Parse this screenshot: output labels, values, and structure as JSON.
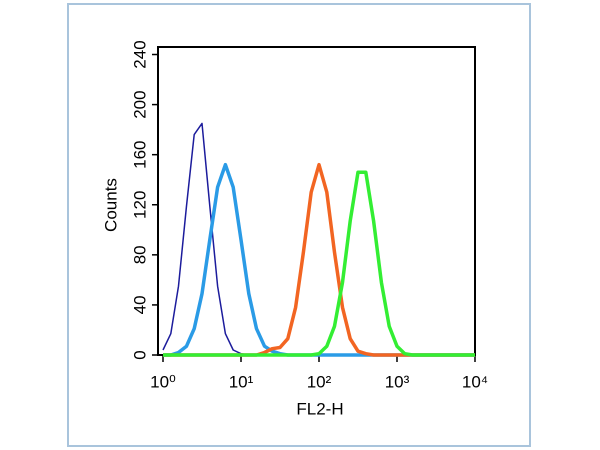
{
  "chart_data": {
    "type": "line",
    "x_label": "FL2-H",
    "y_label": "Counts",
    "xscale": "log",
    "xlim": [
      1,
      10000
    ],
    "xticks": [
      {
        "value": 1,
        "label": "10⁰"
      },
      {
        "value": 10,
        "label": "10¹"
      },
      {
        "value": 100,
        "label": "10²"
      },
      {
        "value": 1000,
        "label": "10³"
      },
      {
        "value": 10000,
        "label": "10⁴"
      }
    ],
    "ylim": [
      0,
      246
    ],
    "yticks": [
      0,
      40,
      80,
      120,
      160,
      200,
      240
    ],
    "x": [
      1,
      1.26,
      1.58,
      2,
      2.51,
      3.16,
      3.98,
      5.01,
      6.31,
      7.94,
      10,
      12.6,
      15.8,
      20,
      25.1,
      31.6,
      39.8,
      50.1,
      63.1,
      79.4,
      100,
      126,
      158,
      200,
      251,
      316,
      398,
      501,
      631,
      794,
      1000,
      1259,
      1585,
      1995,
      2512,
      3162,
      3981,
      5012,
      6310,
      7943,
      10000
    ],
    "series": [
      {
        "color": "#1c1c9c",
        "width": 1.5,
        "values": [
          4,
          17,
          55,
          119,
          176,
          185,
          119,
          55,
          17,
          4,
          1,
          0,
          0,
          0,
          0,
          0,
          0,
          0,
          0,
          0,
          0,
          0,
          0,
          0,
          0,
          0,
          0,
          0,
          0,
          0,
          0,
          0,
          0,
          0,
          0,
          0,
          0,
          0,
          0,
          0,
          0
        ]
      },
      {
        "color": "#2a9be6",
        "width": 3.5,
        "values": [
          0,
          0,
          2,
          7,
          21,
          49,
          92,
          134,
          152,
          134,
          92,
          49,
          21,
          7,
          3,
          1,
          0,
          0,
          0,
          0,
          0,
          0,
          0,
          0,
          0,
          0,
          0,
          0,
          0,
          0,
          0,
          0,
          0,
          0,
          0,
          0,
          0,
          0,
          0,
          0,
          0
        ]
      },
      {
        "color": "#f26522",
        "width": 3.5,
        "values": [
          0,
          0,
          0,
          0,
          0,
          0,
          0,
          0,
          0,
          0,
          0,
          0,
          0,
          2,
          5,
          6,
          13,
          38,
          82,
          130,
          152,
          130,
          82,
          38,
          13,
          3,
          1,
          0,
          0,
          0,
          0,
          0,
          0,
          0,
          0,
          0,
          0,
          0,
          0,
          0,
          0
        ]
      },
      {
        "color": "#33ee33",
        "width": 3.5,
        "values": [
          0,
          0,
          0,
          0,
          0,
          0,
          0,
          0,
          0,
          0,
          0,
          0,
          0,
          0,
          0,
          0,
          0,
          0,
          0,
          0,
          1,
          7,
          23,
          58,
          107,
          146,
          146,
          107,
          58,
          23,
          7,
          1,
          0,
          0,
          0,
          0,
          0,
          0,
          0,
          0,
          0
        ]
      }
    ]
  }
}
